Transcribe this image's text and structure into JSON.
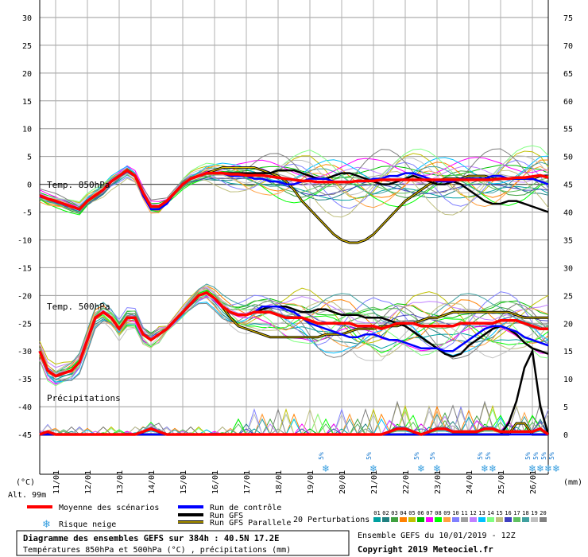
{
  "chart_data": {
    "type": "line",
    "title": "Diagramme des ensembles GEFS sur 384h : 40.5N 17.2E",
    "subtitle": "Températures 850hPa et 500hPa (°C) , précipitations (mm)",
    "left_axis": {
      "unit": "(°C)",
      "ylim": [
        -45,
        30
      ],
      "ticks": [
        30,
        25,
        20,
        15,
        10,
        5,
        0,
        -5,
        -10,
        -15,
        -20,
        -25,
        -30,
        -35,
        -40,
        -45
      ]
    },
    "right_axis": {
      "unit": "(mm)",
      "ticks": [
        75,
        70,
        65,
        60,
        55,
        50,
        45,
        40,
        35,
        30,
        25,
        20,
        15,
        10,
        5,
        0
      ],
      "ylim": [
        0,
        75
      ]
    },
    "altitude": "Alt. 99m",
    "dates": [
      "11/01",
      "12/01",
      "13/01",
      "14/01",
      "15/01",
      "16/01",
      "17/01",
      "18/01",
      "19/01",
      "20/01",
      "21/01",
      "22/01",
      "23/01",
      "24/01",
      "25/01",
      "26/01"
    ],
    "x_start": "10/01 12Z",
    "step_hours": 6,
    "panel_labels": {
      "t850": "Temp. 850hPa",
      "t500": "Temp. 500hPa",
      "precip": "Précipitations"
    },
    "snow_risk": {
      "label": "5%",
      "dates": [
        "19/01",
        "20/01 12Z",
        "22/01",
        "22/01 12Z",
        "24/01",
        "24/01 06Z",
        "25/01 12Z",
        "25/01 18Z",
        "26/01",
        "26/01 06Z"
      ]
    },
    "series": [
      {
        "name": "Moyenne des scénarios",
        "color": "#ff0000",
        "t850": [
          -2,
          -2.6,
          -3,
          -3.5,
          -4,
          -4.5,
          -3,
          -2,
          -1,
          0.5,
          1.5,
          2.5,
          1.5,
          -1.5,
          -4,
          -4,
          -3,
          -1.5,
          0,
          1,
          1.5,
          2,
          2,
          2,
          1.8,
          1.8,
          1.6,
          1.6,
          1.6,
          1.4,
          1.2,
          1,
          0.8,
          0.6,
          0.6,
          0.4,
          0.4,
          0.4,
          0.4,
          0.4,
          0.6,
          0.6,
          0.6,
          0.8,
          0.8,
          0.8,
          0.8,
          0.8,
          0.8,
          0.8,
          0.8,
          0.8,
          0.8,
          0.8,
          0.8,
          0.8,
          0.8,
          0.8,
          1,
          1,
          1.2,
          1.2,
          1.4,
          1.6,
          1.2
        ],
        "t500": [
          -30,
          -33.5,
          -34.5,
          -34,
          -33.5,
          -32,
          -28,
          -24,
          -23,
          -24,
          -26,
          -24,
          -24,
          -27,
          -28,
          -27,
          -26,
          -24.5,
          -23,
          -21.5,
          -20,
          -19.5,
          -20.5,
          -22,
          -23,
          -23.5,
          -23.5,
          -23,
          -23,
          -23,
          -23.5,
          -24,
          -24,
          -24,
          -24.5,
          -25,
          -25,
          -25,
          -25,
          -25,
          -25.5,
          -25.5,
          -25.5,
          -26,
          -25.5,
          -25,
          -25,
          -25,
          -25.5,
          -25.5,
          -25.5,
          -25.5,
          -25.5,
          -25,
          -25,
          -25,
          -25,
          -25,
          -24.5,
          -24.5,
          -24.5,
          -25,
          -25.5,
          -26,
          -26
        ],
        "precip": [
          0,
          0.5,
          0,
          0,
          0,
          0,
          0,
          0,
          0,
          0,
          0,
          0,
          0,
          0.5,
          1,
          0.5,
          0,
          0,
          0,
          0,
          0,
          0,
          0,
          0,
          0,
          0,
          0,
          0,
          0,
          0,
          0,
          0,
          0,
          0,
          0,
          0,
          0,
          0,
          0,
          0,
          0,
          0,
          0,
          0,
          0.5,
          1,
          1,
          0.5,
          0,
          0.5,
          1,
          1,
          0.5,
          0.5,
          0.5,
          0.5,
          1,
          1,
          0.5,
          0.5,
          0.5,
          0.5,
          0.5,
          1,
          0
        ]
      },
      {
        "name": "Run de contrôle",
        "color": "#0000ff",
        "t850": [
          -2.2,
          -2.6,
          -3,
          -3.6,
          -4,
          -4.6,
          -3,
          -2,
          -1,
          0.5,
          1.5,
          2.5,
          1.5,
          -2,
          -4.5,
          -4.5,
          -3.5,
          -1.5,
          0,
          1,
          1.5,
          2,
          2,
          2,
          1.5,
          1.5,
          1.5,
          1,
          1,
          0.5,
          0.5,
          0,
          0,
          0.5,
          1,
          1,
          1,
          0.5,
          0.5,
          0.5,
          0.5,
          0.5,
          1,
          1,
          1.5,
          1.5,
          2,
          2,
          1.5,
          1,
          0.5,
          0.5,
          0.5,
          1,
          1,
          1,
          1,
          1.5,
          1.5,
          1,
          1,
          1,
          1,
          0.5,
          0
        ],
        "t500": [
          -30,
          -33.5,
          -34.5,
          -34,
          -33.5,
          -32,
          -28,
          -24,
          -23,
          -24,
          -26,
          -24,
          -24,
          -27,
          -28,
          -27,
          -26,
          -24.5,
          -23,
          -21.5,
          -20,
          -19.5,
          -20.5,
          -22,
          -23,
          -23.5,
          -23.5,
          -23,
          -22,
          -22,
          -22,
          -22.5,
          -23,
          -24,
          -25,
          -25.5,
          -26,
          -26.5,
          -27,
          -27.5,
          -27.5,
          -27,
          -27,
          -27.5,
          -28,
          -28,
          -28.5,
          -29,
          -29.5,
          -29.5,
          -29.5,
          -30,
          -30,
          -29,
          -28,
          -27,
          -26,
          -25.5,
          -25.5,
          -26,
          -26.5,
          -27.5,
          -28,
          -28.5,
          -29
        ],
        "precip": [
          0,
          0,
          0,
          0,
          0,
          0,
          0,
          0,
          0,
          0,
          0,
          0,
          0,
          0,
          0,
          0,
          0,
          0,
          0,
          0,
          0,
          0,
          0,
          0,
          0,
          0,
          0,
          0,
          0,
          0,
          0,
          0,
          0,
          0,
          0,
          0,
          0,
          0,
          0,
          0,
          0,
          0,
          0,
          0,
          0,
          0,
          0,
          0,
          0,
          0,
          0,
          0,
          0,
          0,
          0,
          0,
          0,
          0,
          0,
          0,
          0,
          0,
          0,
          0,
          0
        ]
      },
      {
        "name": "Run GFS",
        "color": "#000000",
        "t850": [
          -2,
          -2.6,
          -3,
          -3.5,
          -4,
          -4.5,
          -3,
          -2,
          -1,
          0.5,
          1.5,
          2.5,
          1.5,
          -1.5,
          -4,
          -4,
          -3,
          -1.5,
          0,
          1,
          1.5,
          2,
          2,
          2,
          2,
          2,
          2,
          2,
          2,
          2,
          2.5,
          2.5,
          2.5,
          2,
          1.5,
          1,
          1,
          1.5,
          2,
          2,
          1.5,
          1,
          0.5,
          0,
          0,
          0.5,
          1,
          1.5,
          1,
          0.5,
          0,
          0,
          0.5,
          0,
          -1,
          -2,
          -3,
          -3.5,
          -3.5,
          -3,
          -3,
          -3.5,
          -4,
          -4.5,
          -5
        ],
        "t500": [
          -30,
          -33.5,
          -34.5,
          -34,
          -33.5,
          -32,
          -28,
          -24,
          -23,
          -24,
          -26,
          -24,
          -24,
          -27,
          -28,
          -27,
          -26,
          -24.5,
          -23,
          -21.5,
          -20,
          -19.5,
          -20.5,
          -22,
          -23,
          -23.5,
          -23.5,
          -23,
          -22.5,
          -22,
          -22,
          -22,
          -22.5,
          -23,
          -23,
          -22.5,
          -22.5,
          -23,
          -23.5,
          -23.5,
          -23.5,
          -24,
          -24,
          -24,
          -24.5,
          -25,
          -25.5,
          -26.5,
          -27.5,
          -28.5,
          -29.5,
          -30.5,
          -31,
          -30.5,
          -29,
          -28,
          -27,
          -26,
          -25.5,
          -26,
          -27,
          -28.5,
          -29.5,
          -30,
          -30.5
        ],
        "precip": [
          0,
          0,
          0,
          0,
          0,
          0,
          0,
          0,
          0,
          0,
          0,
          0,
          0,
          0,
          0,
          0,
          0,
          0,
          0,
          0,
          0,
          0,
          0,
          0,
          0,
          0,
          0,
          0,
          0,
          0,
          0,
          0,
          0,
          0,
          0,
          0,
          0,
          0,
          0,
          0,
          0,
          0,
          0,
          0,
          0,
          0,
          0,
          0,
          0,
          0,
          0,
          0,
          0,
          0,
          0,
          0,
          0,
          0,
          0,
          2,
          6,
          12,
          15,
          5,
          0
        ]
      },
      {
        "name": "Run GFS Parallele",
        "color": "#e0c000",
        "t850": [
          -2,
          -2.6,
          -3,
          -3.5,
          -4,
          -4.5,
          -3,
          -2,
          -1,
          0.5,
          1.5,
          2.5,
          1.5,
          -1.5,
          -4,
          -4,
          -3,
          -1.5,
          0,
          1,
          1.5,
          2,
          2.5,
          3,
          3,
          3,
          3,
          3,
          2.5,
          2,
          1.5,
          0.5,
          -1,
          -3,
          -4.5,
          -6,
          -7.5,
          -9,
          -10,
          -10.5,
          -10.5,
          -10,
          -9,
          -7.5,
          -6,
          -4.5,
          -3,
          -2,
          -1,
          0,
          0.5,
          1,
          1,
          1,
          1.5,
          1.5,
          1.5,
          1,
          1,
          1,
          1,
          1,
          1,
          1.5,
          1.5
        ],
        "t500": [
          -30,
          -33.5,
          -34.5,
          -34,
          -33.5,
          -32,
          -28,
          -24,
          -23,
          -24,
          -26,
          -24,
          -24,
          -27,
          -28,
          -27,
          -26,
          -24.5,
          -23,
          -21.5,
          -20,
          -19.5,
          -20.5,
          -22,
          -24,
          -25.5,
          -26,
          -26.5,
          -27,
          -27.5,
          -27.5,
          -27.5,
          -27.5,
          -27.5,
          -27.5,
          -27.5,
          -27,
          -27,
          -27,
          -26.5,
          -26,
          -26,
          -26,
          -25.5,
          -25.5,
          -25.5,
          -25,
          -25,
          -24.5,
          -24,
          -24,
          -23.5,
          -23,
          -23,
          -23,
          -23,
          -23,
          -23,
          -23,
          -23,
          -23.5,
          -24,
          -24,
          -24,
          -24
        ],
        "precip": [
          0,
          0,
          0,
          0,
          0,
          0,
          0,
          0,
          0,
          0,
          0,
          0,
          0,
          0,
          0,
          0,
          0,
          0,
          0,
          0,
          0,
          0,
          0,
          0,
          0,
          0,
          0,
          0,
          0,
          0,
          0,
          0,
          0,
          0,
          0,
          0,
          0,
          0,
          0,
          0,
          0,
          0,
          0,
          0,
          0,
          0,
          0,
          0,
          0,
          0,
          0,
          0,
          0,
          0,
          0,
          0,
          0,
          0,
          0,
          0,
          2,
          2,
          0,
          0,
          0
        ]
      }
    ],
    "perturbation_colors": [
      "#00a0a0",
      "#208080",
      "#40a040",
      "#ff8000",
      "#c0c000",
      "#00c000",
      "#ff00ff",
      "#00ff00",
      "#ffa040",
      "#8080ff",
      "#a0a0a0",
      "#c080ff",
      "#00c0ff",
      "#80ff80",
      "#c0c080",
      "#4040c0",
      "#60c060",
      "#40a0a0",
      "#c0c0c0",
      "#808080"
    ]
  },
  "legend": {
    "moyenne": "Moyenne des scénarios",
    "controle": "Run de contrôle",
    "gfs": "Run GFS",
    "gfs_par": "Run GFS Parallele",
    "neige": "Risque neige",
    "perturbations": "20 Perturbations",
    "pert_numbers": [
      "01",
      "02",
      "03",
      "04",
      "05",
      "06",
      "07",
      "08",
      "09",
      "10",
      "11",
      "12",
      "13",
      "14",
      "15",
      "16",
      "17",
      "18",
      "19",
      "20"
    ]
  },
  "footer": {
    "title": "Diagramme des ensembles GEFS sur 384h : 40.5N 17.2E",
    "subtitle": "Températures 850hPa et 500hPa (°C) , précipitations (mm)",
    "ensemble": "Ensemble GEFS du 10/01/2019 - 12Z",
    "copyright": "Copyright 2019 Meteociel.fr"
  }
}
